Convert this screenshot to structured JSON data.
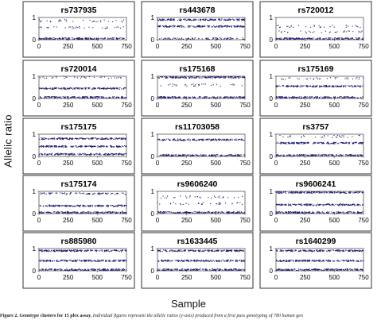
{
  "figure": {
    "y_axis_label": "Allelic ratio",
    "x_axis_label": "Sample",
    "caption_bold": "Figure 2. Genotype clusters for 15 plex assay.",
    "caption_rest": " Individual figures represent the allelic ratios (y-axis) produced from a first pass genotyping of 780 human gen"
  },
  "colors": {
    "marker": "#1c1c6e",
    "panel_border": "#333333",
    "plot_border": "#555555"
  },
  "chart_data": [
    {
      "type": "scatter",
      "title": "rs737935",
      "xlim": [
        0,
        750
      ],
      "ylim": [
        0,
        1
      ],
      "x_ticks": [
        "0",
        "250",
        "500",
        "750"
      ],
      "y_ticks": [
        "0",
        "1"
      ],
      "clusters": [
        {
          "y": 0.05,
          "density": "dense"
        },
        {
          "y": 0.55,
          "density": "sparse"
        },
        {
          "y": 0.85,
          "density": "sparse"
        }
      ]
    },
    {
      "type": "scatter",
      "title": "rs443678",
      "xlim": [
        0,
        750
      ],
      "ylim": [
        0,
        1
      ],
      "x_ticks": [
        "0",
        "250",
        "500",
        "750"
      ],
      "y_ticks": [
        "0",
        "1"
      ],
      "clusters": [
        {
          "y": 0.05,
          "density": "medium"
        },
        {
          "y": 0.6,
          "density": "dense"
        },
        {
          "y": 0.9,
          "density": "dense"
        }
      ]
    },
    {
      "type": "scatter",
      "title": "rs720012",
      "xlim": [
        0,
        750
      ],
      "ylim": [
        0,
        1
      ],
      "x_ticks": [
        "0",
        "250",
        "500",
        "750"
      ],
      "y_ticks": [
        "0",
        "1"
      ],
      "clusters": [
        {
          "y": 0.05,
          "density": "dense"
        },
        {
          "y": 0.35,
          "density": "sparse"
        },
        {
          "y": 0.6,
          "density": "sparse"
        }
      ]
    },
    {
      "type": "scatter",
      "title": "rs720014",
      "xlim": [
        0,
        750
      ],
      "ylim": [
        0,
        1
      ],
      "x_ticks": [
        "0",
        "250",
        "500",
        "750"
      ],
      "y_ticks": [
        "0",
        "1"
      ],
      "clusters": [
        {
          "y": 0.05,
          "density": "dense"
        },
        {
          "y": 0.45,
          "density": "dense"
        },
        {
          "y": 0.95,
          "density": "sparse"
        }
      ]
    },
    {
      "type": "scatter",
      "title": "rs175168",
      "xlim": [
        0,
        750
      ],
      "ylim": [
        0,
        1
      ],
      "x_ticks": [
        "0",
        "250",
        "500",
        "750"
      ],
      "y_ticks": [
        "0",
        "1"
      ],
      "clusters": [
        {
          "y": 0.05,
          "density": "dense"
        },
        {
          "y": 0.6,
          "density": "sparse"
        },
        {
          "y": 0.95,
          "density": "dense"
        }
      ]
    },
    {
      "type": "scatter",
      "title": "rs175169",
      "xlim": [
        0,
        750
      ],
      "ylim": [
        0,
        1
      ],
      "x_ticks": [
        "0",
        "250",
        "500",
        "750"
      ],
      "y_ticks": [
        "0",
        "1"
      ],
      "clusters": [
        {
          "y": 0.05,
          "density": "dense"
        },
        {
          "y": 0.55,
          "density": "dense"
        },
        {
          "y": 0.9,
          "density": "sparse"
        }
      ]
    },
    {
      "type": "scatter",
      "title": "rs175175",
      "xlim": [
        0,
        750
      ],
      "ylim": [
        0,
        1
      ],
      "x_ticks": [
        "0",
        "250",
        "500",
        "750"
      ],
      "y_ticks": [
        "0",
        "1"
      ],
      "clusters": [
        {
          "y": 0.1,
          "density": "dense"
        },
        {
          "y": 0.45,
          "density": "dense"
        },
        {
          "y": 0.8,
          "density": "dense"
        }
      ]
    },
    {
      "type": "scatter",
      "title": "rs11703058",
      "xlim": [
        0,
        750
      ],
      "ylim": [
        0,
        1
      ],
      "x_ticks": [
        "0",
        "250",
        "500",
        "750"
      ],
      "y_ticks": [
        "0",
        "1"
      ],
      "clusters": [
        {
          "y": 0.05,
          "density": "dense"
        },
        {
          "y": 0.75,
          "density": "dense"
        }
      ]
    },
    {
      "type": "scatter",
      "title": "rs3757",
      "xlim": [
        0,
        750
      ],
      "ylim": [
        0,
        1
      ],
      "x_ticks": [
        "0",
        "250",
        "500",
        "750"
      ],
      "y_ticks": [
        "0",
        "1"
      ],
      "clusters": [
        {
          "y": 0.05,
          "density": "dense"
        },
        {
          "y": 0.6,
          "density": "dense"
        },
        {
          "y": 0.9,
          "density": "sparse"
        }
      ]
    },
    {
      "type": "scatter",
      "title": "rs175174",
      "xlim": [
        0,
        750
      ],
      "ylim": [
        0,
        1
      ],
      "x_ticks": [
        "0",
        "250",
        "500",
        "750"
      ],
      "y_ticks": [
        "0",
        "1"
      ],
      "clusters": [
        {
          "y": 0.05,
          "density": "dense"
        },
        {
          "y": 0.35,
          "density": "dense"
        },
        {
          "y": 0.9,
          "density": "medium"
        }
      ]
    },
    {
      "type": "scatter",
      "title": "rs9606240",
      "xlim": [
        0,
        750
      ],
      "ylim": [
        0,
        1
      ],
      "x_ticks": [
        "0",
        "250",
        "500",
        "750"
      ],
      "y_ticks": [
        "0",
        "1"
      ],
      "clusters": [
        {
          "y": 0.05,
          "density": "dense"
        },
        {
          "y": 0.45,
          "density": "sparse"
        },
        {
          "y": 0.75,
          "density": "sparse"
        }
      ]
    },
    {
      "type": "scatter",
      "title": "rs9606241",
      "xlim": [
        0,
        750
      ],
      "ylim": [
        0,
        1
      ],
      "x_ticks": [
        "0",
        "250",
        "500",
        "750"
      ],
      "y_ticks": [
        "0",
        "1"
      ],
      "clusters": [
        {
          "y": 0.05,
          "density": "dense"
        },
        {
          "y": 0.4,
          "density": "dense"
        },
        {
          "y": 0.95,
          "density": "dense"
        }
      ]
    },
    {
      "type": "scatter",
      "title": "rs885980",
      "xlim": [
        0,
        750
      ],
      "ylim": [
        0,
        1
      ],
      "x_ticks": [
        "0",
        "250",
        "500",
        "750"
      ],
      "y_ticks": [
        "0",
        "1"
      ],
      "clusters": [
        {
          "y": 0.05,
          "density": "dense"
        },
        {
          "y": 0.45,
          "density": "dense"
        },
        {
          "y": 0.9,
          "density": "dense"
        }
      ]
    },
    {
      "type": "scatter",
      "title": "rs1633445",
      "xlim": [
        0,
        750
      ],
      "ylim": [
        0,
        1
      ],
      "x_ticks": [
        "0",
        "250",
        "500",
        "750"
      ],
      "y_ticks": [
        "0",
        "1"
      ],
      "clusters": [
        {
          "y": 0.05,
          "density": "dense"
        },
        {
          "y": 0.45,
          "density": "dense"
        },
        {
          "y": 0.9,
          "density": "dense"
        }
      ]
    },
    {
      "type": "scatter",
      "title": "rs1640299",
      "xlim": [
        0,
        750
      ],
      "ylim": [
        0,
        1
      ],
      "x_ticks": [
        "0",
        "250",
        "500",
        "750"
      ],
      "y_ticks": [
        "0",
        "1"
      ],
      "clusters": [
        {
          "y": 0.05,
          "density": "dense"
        },
        {
          "y": 0.45,
          "density": "dense"
        },
        {
          "y": 0.9,
          "density": "dense"
        }
      ]
    }
  ]
}
